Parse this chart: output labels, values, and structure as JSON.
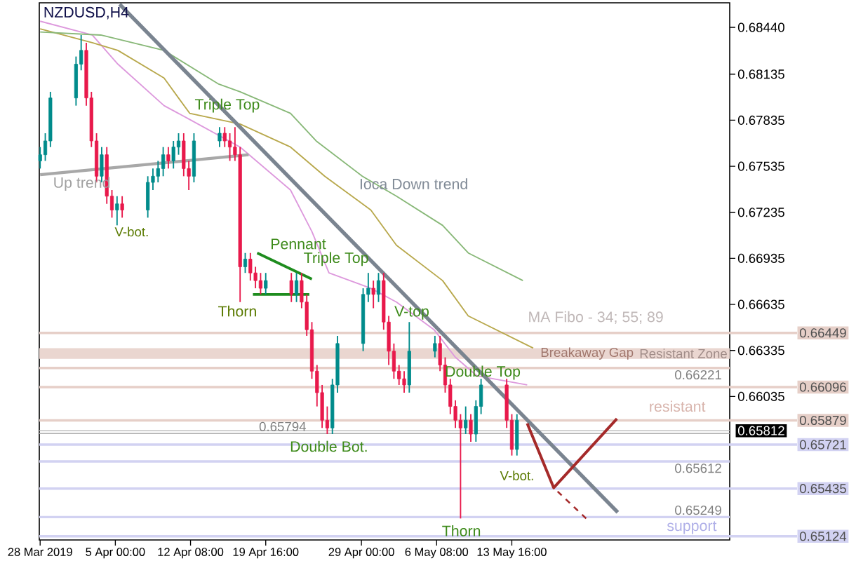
{
  "chart_data": {
    "type": "candlestick",
    "title": "NZDUSD,H4",
    "xlim": [
      "2019-03-28T14:00",
      "2019-06-03T22:00"
    ],
    "ylim": [
      0.651,
      0.686
    ],
    "xticks": [
      {
        "value": "2019-03-28T16:00",
        "label": "28 Mar 2019"
      },
      {
        "value": "2019-04-05T00:00",
        "label": "5 Apr 00:00"
      },
      {
        "value": "2019-04-12T08:00",
        "label": "12 Apr 08:00"
      },
      {
        "value": "2019-04-19T16:00",
        "label": "19 Apr 16:00"
      },
      {
        "value": "2019-04-29T00:00",
        "label": "29 Apr 00:00"
      },
      {
        "value": "2019-05-06T08:00",
        "label": "6 May 08:00"
      },
      {
        "value": "2019-05-13T16:00",
        "label": "13 May 16:00"
      }
    ],
    "yticks": [
      {
        "value": 0.6844,
        "label": "0.68440"
      },
      {
        "value": 0.68135,
        "label": "0.68135"
      },
      {
        "value": 0.67835,
        "label": "0.67835"
      },
      {
        "value": 0.67535,
        "label": "0.67535"
      },
      {
        "value": 0.67235,
        "label": "0.67235"
      },
      {
        "value": 0.66935,
        "label": "0.66935"
      },
      {
        "value": 0.66635,
        "label": "0.66635"
      },
      {
        "value": 0.66335,
        "label": "0.66335"
      },
      {
        "value": 0.66035,
        "label": "0.66035"
      }
    ],
    "x": [
      "2019-03-28T16:00",
      "2019-03-29T04:00",
      "2019-03-29T16:00",
      "2019-04-01T04:00",
      "2019-04-01T16:00",
      "2019-04-02T04:00",
      "2019-04-02T16:00",
      "2019-04-03T04:00",
      "2019-04-03T16:00",
      "2019-04-04T04:00",
      "2019-04-04T16:00",
      "2019-04-05T04:00",
      "2019-04-05T16:00",
      "2019-04-08T04:00",
      "2019-04-08T16:00",
      "2019-04-09T04:00",
      "2019-04-09T16:00",
      "2019-04-10T04:00",
      "2019-04-10T16:00",
      "2019-04-11T04:00",
      "2019-04-11T16:00",
      "2019-04-12T04:00",
      "2019-04-12T16:00",
      "2019-04-15T04:00",
      "2019-04-15T16:00",
      "2019-04-16T04:00",
      "2019-04-16T16:00",
      "2019-04-17T04:00",
      "2019-04-17T16:00",
      "2019-04-18T04:00",
      "2019-04-18T16:00",
      "2019-04-19T04:00",
      "2019-04-19T16:00",
      "2019-04-22T04:00",
      "2019-04-22T16:00",
      "2019-04-23T04:00",
      "2019-04-23T16:00",
      "2019-04-24T04:00",
      "2019-04-24T16:00",
      "2019-04-25T04:00",
      "2019-04-25T16:00",
      "2019-04-26T04:00",
      "2019-04-26T16:00",
      "2019-04-29T04:00",
      "2019-04-29T16:00",
      "2019-04-30T04:00",
      "2019-04-30T16:00",
      "2019-05-01T04:00",
      "2019-05-01T16:00",
      "2019-05-02T04:00",
      "2019-05-02T16:00",
      "2019-05-03T04:00",
      "2019-05-03T16:00",
      "2019-05-06T04:00",
      "2019-05-06T16:00",
      "2019-05-07T04:00",
      "2019-05-07T16:00",
      "2019-05-08T04:00",
      "2019-05-08T16:00",
      "2019-05-09T04:00",
      "2019-05-09T16:00",
      "2019-05-10T04:00",
      "2019-05-10T16:00",
      "2019-05-13T04:00",
      "2019-05-13T16:00",
      "2019-05-14T04:00"
    ],
    "ohlc": [
      [
        0.6757,
        0.6766,
        0.6752,
        0.6761
      ],
      [
        0.6761,
        0.6775,
        0.6757,
        0.677
      ],
      [
        0.677,
        0.6802,
        0.6766,
        0.6798
      ],
      [
        0.6798,
        0.6825,
        0.6793,
        0.682
      ],
      [
        0.682,
        0.6839,
        0.6816,
        0.6829
      ],
      [
        0.6829,
        0.6834,
        0.6793,
        0.6798
      ],
      [
        0.6798,
        0.6802,
        0.6766,
        0.677
      ],
      [
        0.677,
        0.6775,
        0.6743,
        0.6747
      ],
      [
        0.6747,
        0.6766,
        0.6743,
        0.6761
      ],
      [
        0.6761,
        0.6766,
        0.6729,
        0.6734
      ],
      [
        0.6734,
        0.6738,
        0.672,
        0.6725
      ],
      [
        0.6725,
        0.6734,
        0.6715,
        0.6729
      ],
      [
        0.6729,
        0.6734,
        0.672,
        0.6725
      ],
      [
        0.6725,
        0.6747,
        0.672,
        0.6743
      ],
      [
        0.6743,
        0.6752,
        0.6738,
        0.6747
      ],
      [
        0.6747,
        0.6757,
        0.6743,
        0.6752
      ],
      [
        0.6752,
        0.6766,
        0.6747,
        0.6761
      ],
      [
        0.6761,
        0.6766,
        0.6752,
        0.6757
      ],
      [
        0.6757,
        0.677,
        0.6752,
        0.6766
      ],
      [
        0.6766,
        0.6775,
        0.6761,
        0.677
      ],
      [
        0.677,
        0.6775,
        0.6747,
        0.6752
      ],
      [
        0.6752,
        0.6757,
        0.6738,
        0.6747
      ],
      [
        0.6747,
        0.6775,
        0.6743,
        0.677
      ],
      [
        0.677,
        0.6779,
        0.6766,
        0.6775
      ],
      [
        0.6775,
        0.6779,
        0.6766,
        0.677
      ],
      [
        0.677,
        0.6775,
        0.6757,
        0.6766
      ],
      [
        0.6766,
        0.6779,
        0.6757,
        0.6761
      ],
      [
        0.6761,
        0.6766,
        0.6665,
        0.6688
      ],
      [
        0.6688,
        0.6697,
        0.6684,
        0.6693
      ],
      [
        0.6693,
        0.6697,
        0.6679,
        0.6684
      ],
      [
        0.6684,
        0.6688,
        0.6674,
        0.6679
      ],
      [
        0.6679,
        0.6684,
        0.667,
        0.6674
      ],
      [
        0.6674,
        0.6684,
        0.667,
        0.6679
      ],
      [
        0.6679,
        0.6684,
        0.6665,
        0.667
      ],
      [
        0.667,
        0.6684,
        0.6665,
        0.6679
      ],
      [
        0.6679,
        0.6684,
        0.6661,
        0.6665
      ],
      [
        0.6665,
        0.667,
        0.6643,
        0.6647
      ],
      [
        0.6647,
        0.6652,
        0.6615,
        0.662
      ],
      [
        0.662,
        0.6624,
        0.6597,
        0.6606
      ],
      [
        0.6606,
        0.6611,
        0.6583,
        0.6588
      ],
      [
        0.6588,
        0.6597,
        0.6579,
        0.6583
      ],
      [
        0.6583,
        0.6615,
        0.6579,
        0.6611
      ],
      [
        0.6611,
        0.6643,
        0.6606,
        0.6638
      ],
      [
        0.6638,
        0.6674,
        0.6633,
        0.667
      ],
      [
        0.667,
        0.6684,
        0.6665,
        0.6674
      ],
      [
        0.6674,
        0.6679,
        0.6661,
        0.667
      ],
      [
        0.667,
        0.6684,
        0.6665,
        0.6679
      ],
      [
        0.6679,
        0.6684,
        0.6647,
        0.6652
      ],
      [
        0.6652,
        0.6656,
        0.6624,
        0.6633
      ],
      [
        0.6633,
        0.6638,
        0.6615,
        0.662
      ],
      [
        0.662,
        0.6624,
        0.6611,
        0.6615
      ],
      [
        0.6615,
        0.662,
        0.6606,
        0.6611
      ],
      [
        0.6611,
        0.6652,
        0.6606,
        0.6633
      ],
      [
        0.6633,
        0.6643,
        0.6629,
        0.6638
      ],
      [
        0.6638,
        0.6643,
        0.662,
        0.6624
      ],
      [
        0.6624,
        0.6629,
        0.6606,
        0.6611
      ],
      [
        0.6611,
        0.6615,
        0.6592,
        0.6597
      ],
      [
        0.6597,
        0.6601,
        0.6583,
        0.6588
      ],
      [
        0.6588,
        0.6592,
        0.6524,
        0.6583
      ],
      [
        0.6583,
        0.6597,
        0.6579,
        0.6588
      ],
      [
        0.6588,
        0.6592,
        0.6574,
        0.6579
      ],
      [
        0.6579,
        0.6601,
        0.6574,
        0.6597
      ],
      [
        0.6597,
        0.6615,
        0.6592,
        0.6611
      ],
      [
        0.6611,
        0.6615,
        0.6583,
        0.6588
      ],
      [
        0.6588,
        0.6592,
        0.6565,
        0.6569
      ],
      [
        0.6569,
        0.6592,
        0.6565,
        0.6588
      ]
    ],
    "colors": [
      "#008b8b",
      "#008b8b",
      "#008b8b",
      "#008b8b",
      "#008b8b",
      "#e8194b",
      "#e8194b",
      "#e8194b",
      "#008b8b",
      "#e8194b",
      "#e8194b",
      "#008b8b",
      "#e8194b",
      "#008b8b",
      "#008b8b",
      "#008b8b",
      "#008b8b",
      "#e8194b",
      "#008b8b",
      "#008b8b",
      "#e8194b",
      "#e8194b",
      "#008b8b",
      "#008b8b",
      "#e8194b",
      "#e8194b",
      "#e8194b",
      "#e8194b",
      "#008b8b",
      "#e8194b",
      "#e8194b",
      "#e8194b",
      "#008b8b",
      "#e8194b",
      "#008b8b",
      "#e8194b",
      "#e8194b",
      "#e8194b",
      "#e8194b",
      "#e8194b",
      "#e8194b",
      "#008b8b",
      "#008b8b",
      "#008b8b",
      "#008b8b",
      "#e8194b",
      "#008b8b",
      "#e8194b",
      "#e8194b",
      "#e8194b",
      "#e8194b",
      "#e8194b",
      "#008b8b",
      "#008b8b",
      "#e8194b",
      "#e8194b",
      "#e8194b",
      "#e8194b",
      "#e8194b",
      "#008b8b",
      "#e8194b",
      "#008b8b",
      "#008b8b",
      "#e8194b",
      "#e8194b",
      "#008b8b"
    ],
    "series": [
      {
        "type": "line",
        "color": "#dd99dd",
        "x": [
          "2019-03-28T16:00",
          "2019-04-02T18:00",
          "2019-04-05T06:00",
          "2019-04-09T18:00",
          "2019-04-12T06:00",
          "2019-04-17T04:00",
          "2019-04-22T02:00",
          "2019-04-24T04:00",
          "2019-04-25T20:00",
          "2019-04-29T22:00",
          "2019-05-02T10:00",
          "2019-05-06T02:00",
          "2019-05-08T04:00",
          "2019-05-10T06:00",
          "2019-05-15T04:00"
        ],
        "values": [
          0.6848,
          0.6839,
          0.682,
          0.6793,
          0.6784,
          0.6766,
          0.6738,
          0.6711,
          0.6684,
          0.6674,
          0.6665,
          0.6647,
          0.6629,
          0.6617,
          0.6611
        ]
      },
      {
        "type": "line",
        "color": "#b8a84c",
        "x": [
          "2019-03-28T16:00",
          "2019-04-02T18:00",
          "2019-04-05T06:00",
          "2019-04-09T18:00",
          "2019-04-12T06:00",
          "2019-04-17T04:00",
          "2019-04-22T02:00",
          "2019-04-25T10:00",
          "2019-04-29T22:00",
          "2019-05-02T10:00",
          "2019-05-06T22:00",
          "2019-05-09T10:00",
          "2019-05-15T18:00"
        ],
        "values": [
          0.6843,
          0.6834,
          0.6829,
          0.6811,
          0.6788,
          0.6781,
          0.6766,
          0.6747,
          0.6725,
          0.6702,
          0.6679,
          0.6656,
          0.6635
        ]
      },
      {
        "type": "line",
        "color": "#88b878",
        "x": [
          "2019-03-28T16:00",
          "2019-04-03T14:00",
          "2019-04-09T18:00",
          "2019-04-15T02:00",
          "2019-04-17T04:00",
          "2019-04-22T02:00",
          "2019-04-24T14:00",
          "2019-04-29T02:00",
          "2019-05-02T10:00",
          "2019-05-06T22:00",
          "2019-05-09T10:00",
          "2019-05-14T18:00"
        ],
        "values": [
          0.6841,
          0.6839,
          0.6829,
          0.6807,
          0.6802,
          0.6788,
          0.677,
          0.6747,
          0.6734,
          0.6715,
          0.6697,
          0.6679
        ]
      },
      {
        "type": "line",
        "color": "#7a8490",
        "x": [
          "2019-04-05T10:00",
          "2019-05-24T00:00"
        ],
        "values": [
          0.6859,
          0.6528
        ]
      },
      {
        "type": "line",
        "color": "#a8a8a8",
        "x": [
          "2019-03-28T16:00",
          "2019-04-18T00:00"
        ],
        "values": [
          0.6748,
          0.6761
        ]
      },
      {
        "type": "line",
        "color": "#1e8c1e",
        "x": [
          "2019-04-18T20:00",
          "2019-04-24T04:00"
        ],
        "values": [
          0.6697,
          0.668
        ]
      },
      {
        "type": "line",
        "color": "#1e8c1e",
        "x": [
          "2019-04-18T10:00",
          "2019-04-23T22:00"
        ],
        "values": [
          0.667,
          0.667
        ]
      },
      {
        "type": "line",
        "color": "#a52a2a",
        "x": [
          "2019-05-15T04:00",
          "2019-05-17T18:00",
          "2019-05-23T22:00"
        ],
        "values": [
          0.6586,
          0.6544,
          0.6589
        ]
      },
      {
        "type": "line",
        "color": "#a52a2a",
        "line_style": "dashed",
        "x": [
          "2019-05-17T18:00",
          "2019-05-20T22:00"
        ],
        "values": [
          0.6544,
          0.6524
        ]
      }
    ],
    "ref_lines": [
      {
        "axis": "y",
        "value": 0.66449,
        "label": "0.66449",
        "color": "#e6cfc8"
      },
      {
        "axis": "y",
        "value": 0.66221,
        "label": "0.66221",
        "color": "#e6cfc8"
      },
      {
        "axis": "y",
        "value": 0.66096,
        "label": "0.66096",
        "color": "#e6cfc8"
      },
      {
        "axis": "y",
        "value": 0.65879,
        "label": "0.65879",
        "color": "#e6cfc8"
      },
      {
        "axis": "y",
        "value": 0.65812,
        "label": "0.65812",
        "color": "#c0c0c0"
      },
      {
        "axis": "y",
        "value": 0.65794,
        "label": "0.65794",
        "color": "#b4b4b4"
      },
      {
        "axis": "y",
        "value": 0.65721,
        "label": "0.65721",
        "color": "#d2d2f2"
      },
      {
        "axis": "y",
        "value": 0.65612,
        "label": "0.65612",
        "color": "#d2d2f2"
      },
      {
        "axis": "y",
        "value": 0.65435,
        "label": "0.65435",
        "color": "#d2d2f2"
      },
      {
        "axis": "y",
        "value": 0.65249,
        "label": "0.65249",
        "color": "#d2d2f2"
      },
      {
        "axis": "y",
        "value": 0.65124,
        "label": "0.65124",
        "color": "#d2d2f2"
      }
    ],
    "bands": [
      {
        "axis": "y",
        "from": 0.6628,
        "to": 0.6635,
        "label": "Resistant Zone",
        "color": "#ead6d0"
      }
    ],
    "annotations": [
      {
        "text": "Triple Top",
        "x": "2019-04-15T22:00",
        "y": 0.6793
      },
      "Up trend",
      "V-bot.",
      "Ioca Down trend",
      "Pennant",
      "Thorn",
      "Triple Top",
      {
        "text": "V-top",
        "x": "2019-05-03T22:00",
        "y": 0.6658
      },
      {
        "text": "Breakaway Gap",
        "x": "2019-05-16T08:00",
        "y": 0.66315
      },
      {
        "text": "Double Top",
        "x": "2019-05-10T20:00",
        "y": 0.6619
      },
      {
        "text": "Double Bot.",
        "x": "2019-04-25T20:00",
        "y": 0.6571
      },
      "V-bot.",
      {
        "text": "Thorn",
        "x": "2019-05-08T18:00",
        "y": 0.6516
      },
      "MA Fibo - 34; 55; 89",
      "resistant",
      "support"
    ]
  }
}
